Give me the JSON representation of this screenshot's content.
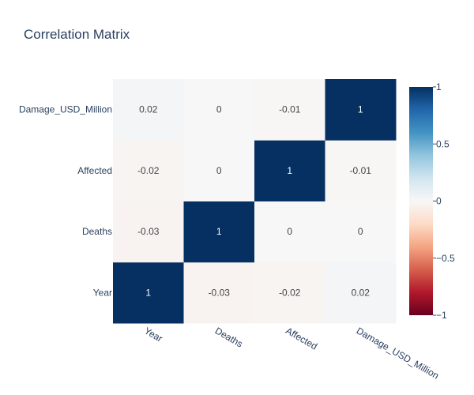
{
  "chart_data": {
    "type": "heatmap",
    "title": "Correlation Matrix",
    "x_categories": [
      "Year",
      "Deaths",
      "Affected",
      "Damage_USD_Million"
    ],
    "y_categories": [
      "Year",
      "Deaths",
      "Affected",
      "Damage_USD_Million"
    ],
    "z": [
      [
        1,
        -0.03,
        -0.02,
        0.02
      ],
      [
        -0.03,
        1,
        0,
        0
      ],
      [
        -0.02,
        0,
        1,
        -0.01
      ],
      [
        0.02,
        0,
        -0.01,
        1
      ]
    ],
    "text": [
      [
        "1",
        "-0.03",
        "-0.02",
        "0.02"
      ],
      [
        "-0.03",
        "1",
        "0",
        "0"
      ],
      [
        "-0.02",
        "0",
        "1",
        "-0.01"
      ],
      [
        "0.02",
        "0",
        "-0.01",
        "1"
      ]
    ],
    "zmin": -1,
    "zmax": 1,
    "colorscale": "RdBu",
    "colorbar_ticks": [
      "1",
      "0.5",
      "0",
      "−0.5",
      "−1"
    ],
    "colorbar_tick_values": [
      1,
      0.5,
      0,
      -0.5,
      -1
    ],
    "colors": {
      "title": "#2a3f5f",
      "axis_text": "#2a3f5f"
    }
  }
}
